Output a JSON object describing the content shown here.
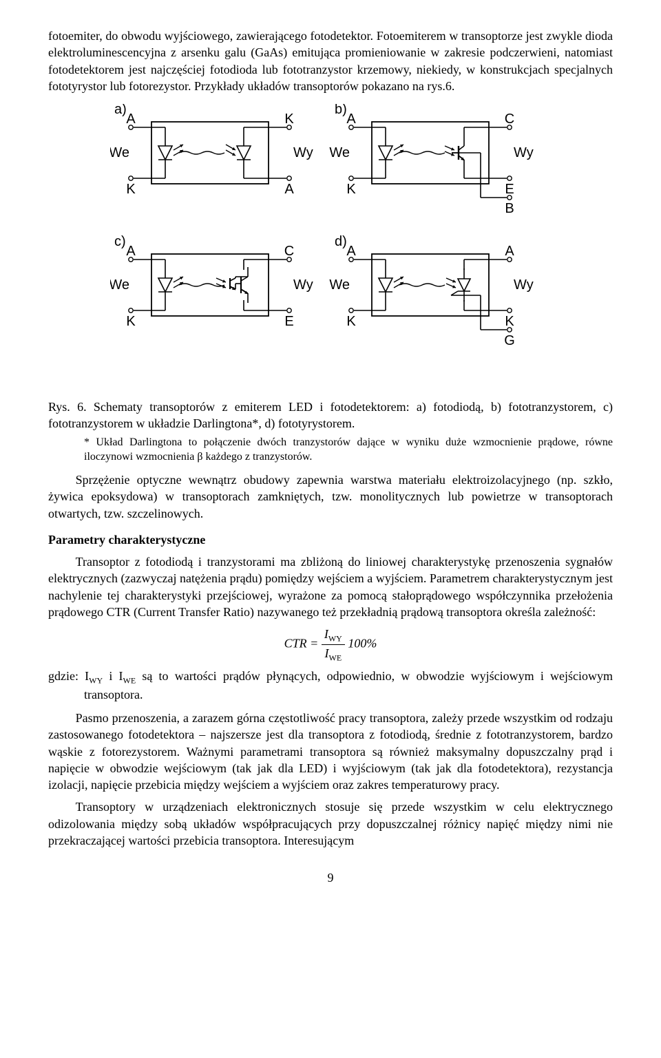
{
  "para1": "fotoemiter, do obwodu wyjściowego, zawierającego fotodetektor. Fotoemiterem w transoptorze jest zwykle dioda elektroluminescencyjna z arsenku galu (GaAs) emitująca promieniowanie w zakresie podczerwieni, natomiast fotodetektorem jest najczęściej fotodioda lub fototranzystor krzemowy, niekiedy, w konstrukcjach specjalnych fototyrystor lub fotorezystor. Przykłady układów transoptorów pokazano na rys.6.",
  "figure": {
    "box_stroke": "#000000",
    "box_fill": "#ffffff",
    "line_stroke": "#000000",
    "label_font_size": 20,
    "terminal_font_size": 20,
    "panels": {
      "a": {
        "tag": "a)",
        "left_top": "A",
        "left_bot": "K",
        "left_mid": "We",
        "right_top": "K",
        "right_bot": "A",
        "right_mid": "Wy"
      },
      "b": {
        "tag": "b)",
        "left_top": "A",
        "left_bot": "K",
        "left_mid": "We",
        "right_top": "C",
        "right_bot": "E",
        "right_mid": "Wy",
        "extra": "B"
      },
      "c": {
        "tag": "c)",
        "left_top": "A",
        "left_bot": "K",
        "left_mid": "We",
        "right_top": "C",
        "right_bot": "E",
        "right_mid": "Wy"
      },
      "d": {
        "tag": "d)",
        "left_top": "A",
        "left_bot": "K",
        "left_mid": "We",
        "right_top": "A",
        "right_bot": "K",
        "right_mid": "Wy",
        "extra": "G"
      }
    }
  },
  "caption_lead": "Rys. 6. ",
  "caption_body": "Schematy transoptorów z emiterem LED i fotodetektorem: a) fotodiodą, b) fototranzystorem, c) fototranzystorem w układzie Darlingtona*, d) fototyrystorem.",
  "caption_note": "* Układ Darlingtona to połączenie dwóch tranzystorów dające w wyniku duże wzmocnienie prądowe, równe iloczynowi wzmocnienia β każdego z tranzystorów.",
  "para2": "Sprzężenie optyczne wewnątrz obudowy zapewnia warstwa materiału elektroizolacyjnego (np. szkło, żywica epoksydowa) w transoptorach zamkniętych, tzw. monolitycznych lub powietrze w transoptorach otwartych, tzw. szczelinowych.",
  "section_title": "Parametry charakterystyczne",
  "para3": "Transoptor z fotodiodą i tranzystorami ma zbliżoną do liniowej charakterystykę przenoszenia sygnałów elektrycznych (zazwyczaj natężenia prądu) pomiędzy wejściem a wyjściem. Parametrem charakterystycznym jest nachylenie tej charakterystyki przejściowej, wyrażone za pomocą stałoprądowego współczynnika przełożenia prądowego CTR (Current Transfer Ratio) nazywanego też przekładnią prądową transoptora określa zależność:",
  "formula": {
    "lhs": "CTR =",
    "num": "I",
    "num_sub": "WY",
    "den": "I",
    "den_sub": "WE",
    "tail": " 100%"
  },
  "where": "gdzie: I",
  "where_sub1": "WY",
  "where_mid1": " i I",
  "where_sub2": "WE",
  "where_tail": " są to wartości prądów płynących, odpowiednio, w obwodzie wyjściowym i wejściowym transoptora.",
  "para4": "Pasmo przenoszenia, a zarazem górna częstotliwość pracy transoptora, zależy przede wszystkim od rodzaju zastosowanego fotodetektora – najszersze jest dla transoptora z fotodiodą, średnie z fototranzystorem, bardzo wąskie z fotorezystorem. Ważnymi parametrami transoptora są również maksymalny dopuszczalny prąd i napięcie w obwodzie wejściowym (tak jak dla LED) i wyjściowym (tak jak dla fotodetektora), rezystancja izolacji, napięcie przebicia między wejściem a wyjściem oraz zakres temperaturowy pracy.",
  "para5": "Transoptory w urządzeniach elektronicznych stosuje się przede wszystkim w celu elektrycznego odizolowania między sobą układów współpracujących przy dopuszczalnej różnicy napięć między nimi nie przekraczającej wartości przebicia transoptora. Interesującym",
  "page_number": "9"
}
